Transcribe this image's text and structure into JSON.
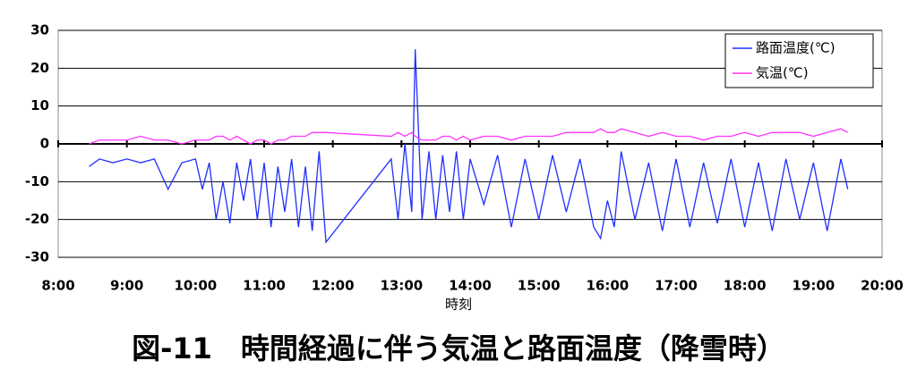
{
  "chart_data": {
    "type": "line",
    "title": "図-11　時間経過に伴う気温と路面温度（降雪時）",
    "x_label": "時刻",
    "x": [
      8.45,
      8.6,
      8.8,
      9.0,
      9.2,
      9.4,
      9.6,
      9.8,
      10.0,
      10.1,
      10.2,
      10.3,
      10.4,
      10.5,
      10.6,
      10.7,
      10.8,
      10.9,
      11.0,
      11.1,
      11.2,
      11.3,
      11.4,
      11.5,
      11.6,
      11.7,
      11.8,
      11.9,
      12.85,
      12.95,
      13.05,
      13.15,
      13.2,
      13.3,
      13.4,
      13.5,
      13.6,
      13.7,
      13.8,
      13.9,
      14.0,
      14.2,
      14.4,
      14.6,
      14.8,
      15.0,
      15.2,
      15.4,
      15.6,
      15.8,
      15.9,
      16.0,
      16.1,
      16.2,
      16.4,
      16.6,
      16.8,
      17.0,
      17.2,
      17.4,
      17.6,
      17.8,
      18.0,
      18.2,
      18.4,
      18.6,
      18.8,
      19.0,
      19.2,
      19.4,
      19.5
    ],
    "series": [
      {
        "name": "路面温度(℃)",
        "color": "#1f2fff",
        "values": [
          -6,
          -4,
          -5,
          -4,
          -5,
          -4,
          -12,
          -5,
          -4,
          -12,
          -5,
          -20,
          -10,
          -21,
          -5,
          -15,
          -4,
          -20,
          -5,
          -22,
          -6,
          -18,
          -4,
          -22,
          -6,
          -23,
          -2,
          -26,
          -4,
          -20,
          0,
          -18,
          25,
          -20,
          -2,
          -20,
          -3,
          -18,
          -2,
          -20,
          -4,
          -16,
          -3,
          -22,
          -4,
          -20,
          -3,
          -18,
          -4,
          -22,
          -25,
          -15,
          -22,
          -2,
          -20,
          -5,
          -23,
          -4,
          -22,
          -5,
          -21,
          -4,
          -22,
          -5,
          -23,
          -4,
          -20,
          -5,
          -23,
          -4,
          -12
        ]
      },
      {
        "name": "気温(℃)",
        "color": "#ff33ff",
        "values": [
          0,
          1,
          1,
          1,
          2,
          1,
          1,
          0,
          1,
          1,
          1,
          2,
          2,
          1,
          2,
          1,
          0,
          1,
          1,
          0,
          1,
          1,
          2,
          2,
          2,
          3,
          3,
          3,
          2,
          3,
          2,
          3,
          2,
          1,
          1,
          1,
          2,
          2,
          1,
          2,
          1,
          2,
          2,
          1,
          2,
          2,
          2,
          3,
          3,
          3,
          4,
          3,
          3,
          4,
          3,
          2,
          3,
          2,
          2,
          1,
          2,
          2,
          3,
          2,
          3,
          3,
          3,
          2,
          3,
          4,
          3
        ]
      }
    ],
    "xlim": [
      8,
      20
    ],
    "xticks": [
      {
        "value": 8,
        "label": "8:00"
      },
      {
        "value": 9,
        "label": "9:00"
      },
      {
        "value": 10,
        "label": "10:00"
      },
      {
        "value": 11,
        "label": "11:00"
      },
      {
        "value": 12,
        "label": "12:00"
      },
      {
        "value": 13,
        "label": "13:00"
      },
      {
        "value": 14,
        "label": "14:00"
      },
      {
        "value": 15,
        "label": "15:00"
      },
      {
        "value": 16,
        "label": "16:00"
      },
      {
        "value": 17,
        "label": "17:00"
      },
      {
        "value": 18,
        "label": "18:00"
      },
      {
        "value": 19,
        "label": "19:00"
      },
      {
        "value": 20,
        "label": "20:00"
      }
    ],
    "ylim": [
      -30,
      30
    ],
    "yticks": [
      -30,
      -20,
      -10,
      0,
      10,
      20,
      30
    ],
    "grid": true,
    "legend": "top-right"
  }
}
